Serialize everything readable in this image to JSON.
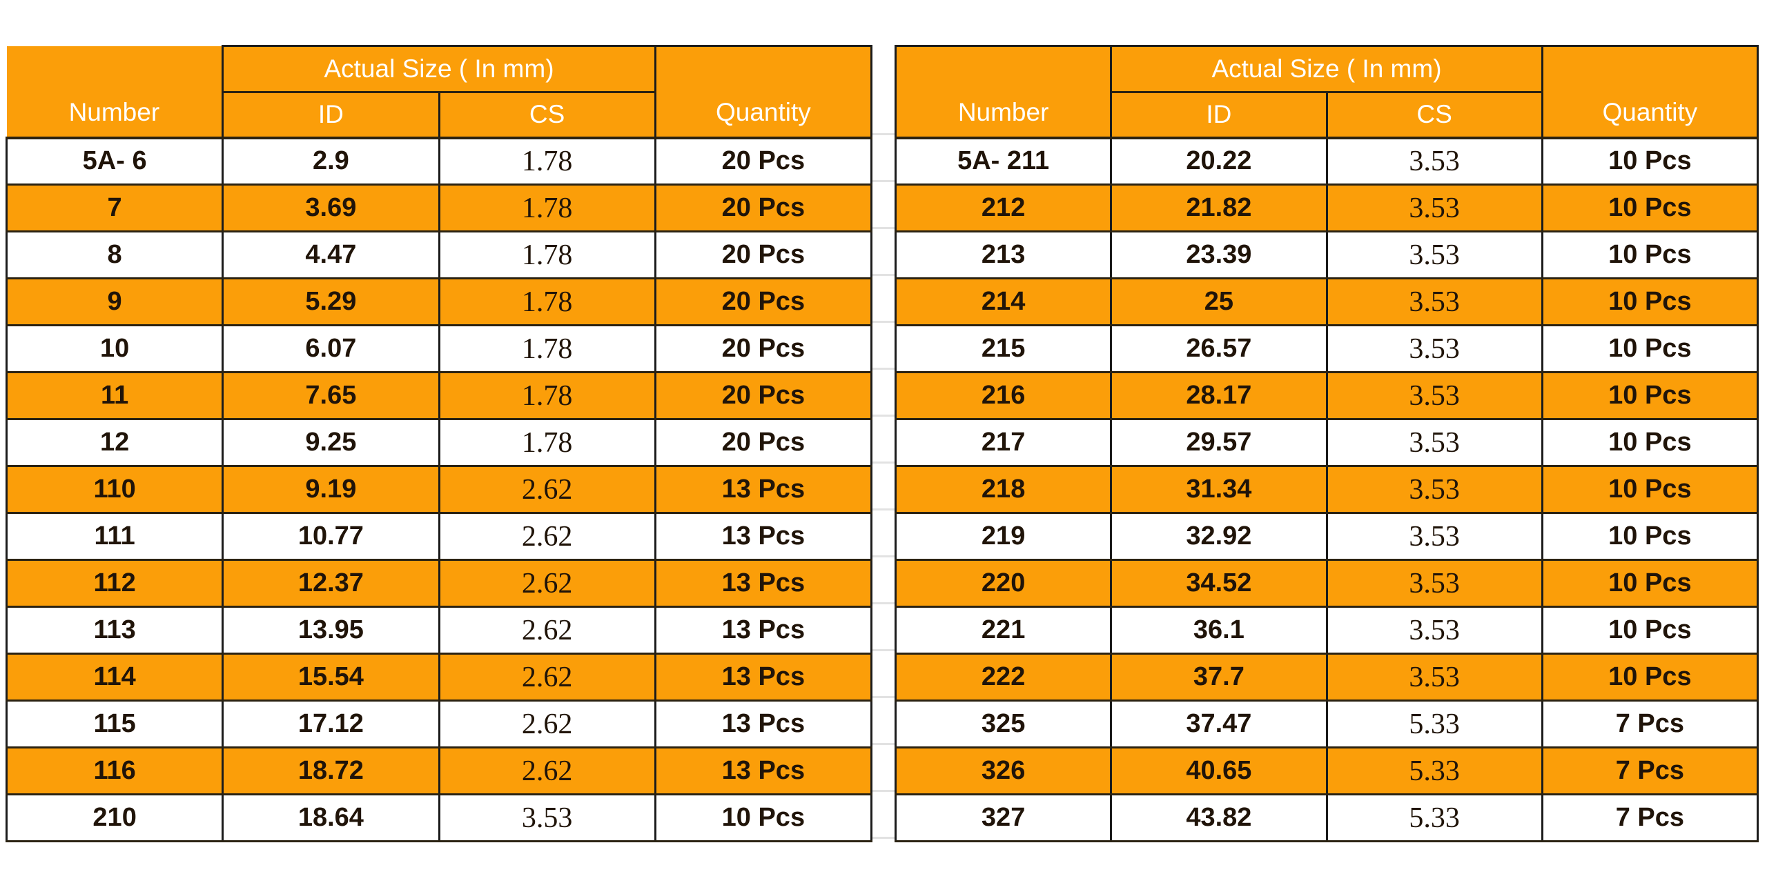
{
  "page": {
    "background": "#FFFFFF"
  },
  "colors": {
    "row_orange": "#FB9E09",
    "header_orange": "#FB9E09",
    "header_text": "#FFFFFF",
    "cell_text": "#201409",
    "border": "#1B1B1B",
    "row_border": "#2A2212",
    "gap_gridline": "#E2E2E2"
  },
  "tables": [
    {
      "name": "oring-size-table-left",
      "headers": {
        "number": "Number",
        "actual_size": "Actual Size ( In mm)",
        "id": "ID",
        "cs": "CS",
        "quantity": "Quantity"
      },
      "rows": [
        [
          "5A- 6",
          "2.9",
          "1.78",
          "20 Pcs"
        ],
        [
          "7",
          "3.69",
          "1.78",
          "20 Pcs"
        ],
        [
          "8",
          "4.47",
          "1.78",
          "20 Pcs"
        ],
        [
          "9",
          "5.29",
          "1.78",
          "20 Pcs"
        ],
        [
          "10",
          "6.07",
          "1.78",
          "20 Pcs"
        ],
        [
          "11",
          "7.65",
          "1.78",
          "20 Pcs"
        ],
        [
          "12",
          "9.25",
          "1.78",
          "20 Pcs"
        ],
        [
          "110",
          "9.19",
          "2.62",
          "13 Pcs"
        ],
        [
          "111",
          "10.77",
          "2.62",
          "13 Pcs"
        ],
        [
          "112",
          "12.37",
          "2.62",
          "13 Pcs"
        ],
        [
          "113",
          "13.95",
          "2.62",
          "13 Pcs"
        ],
        [
          "114",
          "15.54",
          "2.62",
          "13 Pcs"
        ],
        [
          "115",
          "17.12",
          "2.62",
          "13 Pcs"
        ],
        [
          "116",
          "18.72",
          "2.62",
          "13 Pcs"
        ],
        [
          "210",
          "18.64",
          "3.53",
          "10 Pcs"
        ]
      ]
    },
    {
      "name": "oring-size-table-right",
      "headers": {
        "number": "Number",
        "actual_size": "Actual Size ( In mm)",
        "id": "ID",
        "cs": "CS",
        "quantity": "Quantity"
      },
      "rows": [
        [
          "5A- 211",
          "20.22",
          "3.53",
          "10 Pcs"
        ],
        [
          "212",
          "21.82",
          "3.53",
          "10 Pcs"
        ],
        [
          "213",
          "23.39",
          "3.53",
          "10 Pcs"
        ],
        [
          "214",
          "25",
          "3.53",
          "10 Pcs"
        ],
        [
          "215",
          "26.57",
          "3.53",
          "10 Pcs"
        ],
        [
          "216",
          "28.17",
          "3.53",
          "10 Pcs"
        ],
        [
          "217",
          "29.57",
          "3.53",
          "10 Pcs"
        ],
        [
          "218",
          "31.34",
          "3.53",
          "10 Pcs"
        ],
        [
          "219",
          "32.92",
          "3.53",
          "10 Pcs"
        ],
        [
          "220",
          "34.52",
          "3.53",
          "10 Pcs"
        ],
        [
          "221",
          "36.1",
          "3.53",
          "10 Pcs"
        ],
        [
          "222",
          "37.7",
          "3.53",
          "10 Pcs"
        ],
        [
          "325",
          "37.47",
          "5.33",
          "7 Pcs"
        ],
        [
          "326",
          "40.65",
          "5.33",
          "7 Pcs"
        ],
        [
          "327",
          "43.82",
          "5.33",
          "7 Pcs"
        ]
      ]
    }
  ]
}
